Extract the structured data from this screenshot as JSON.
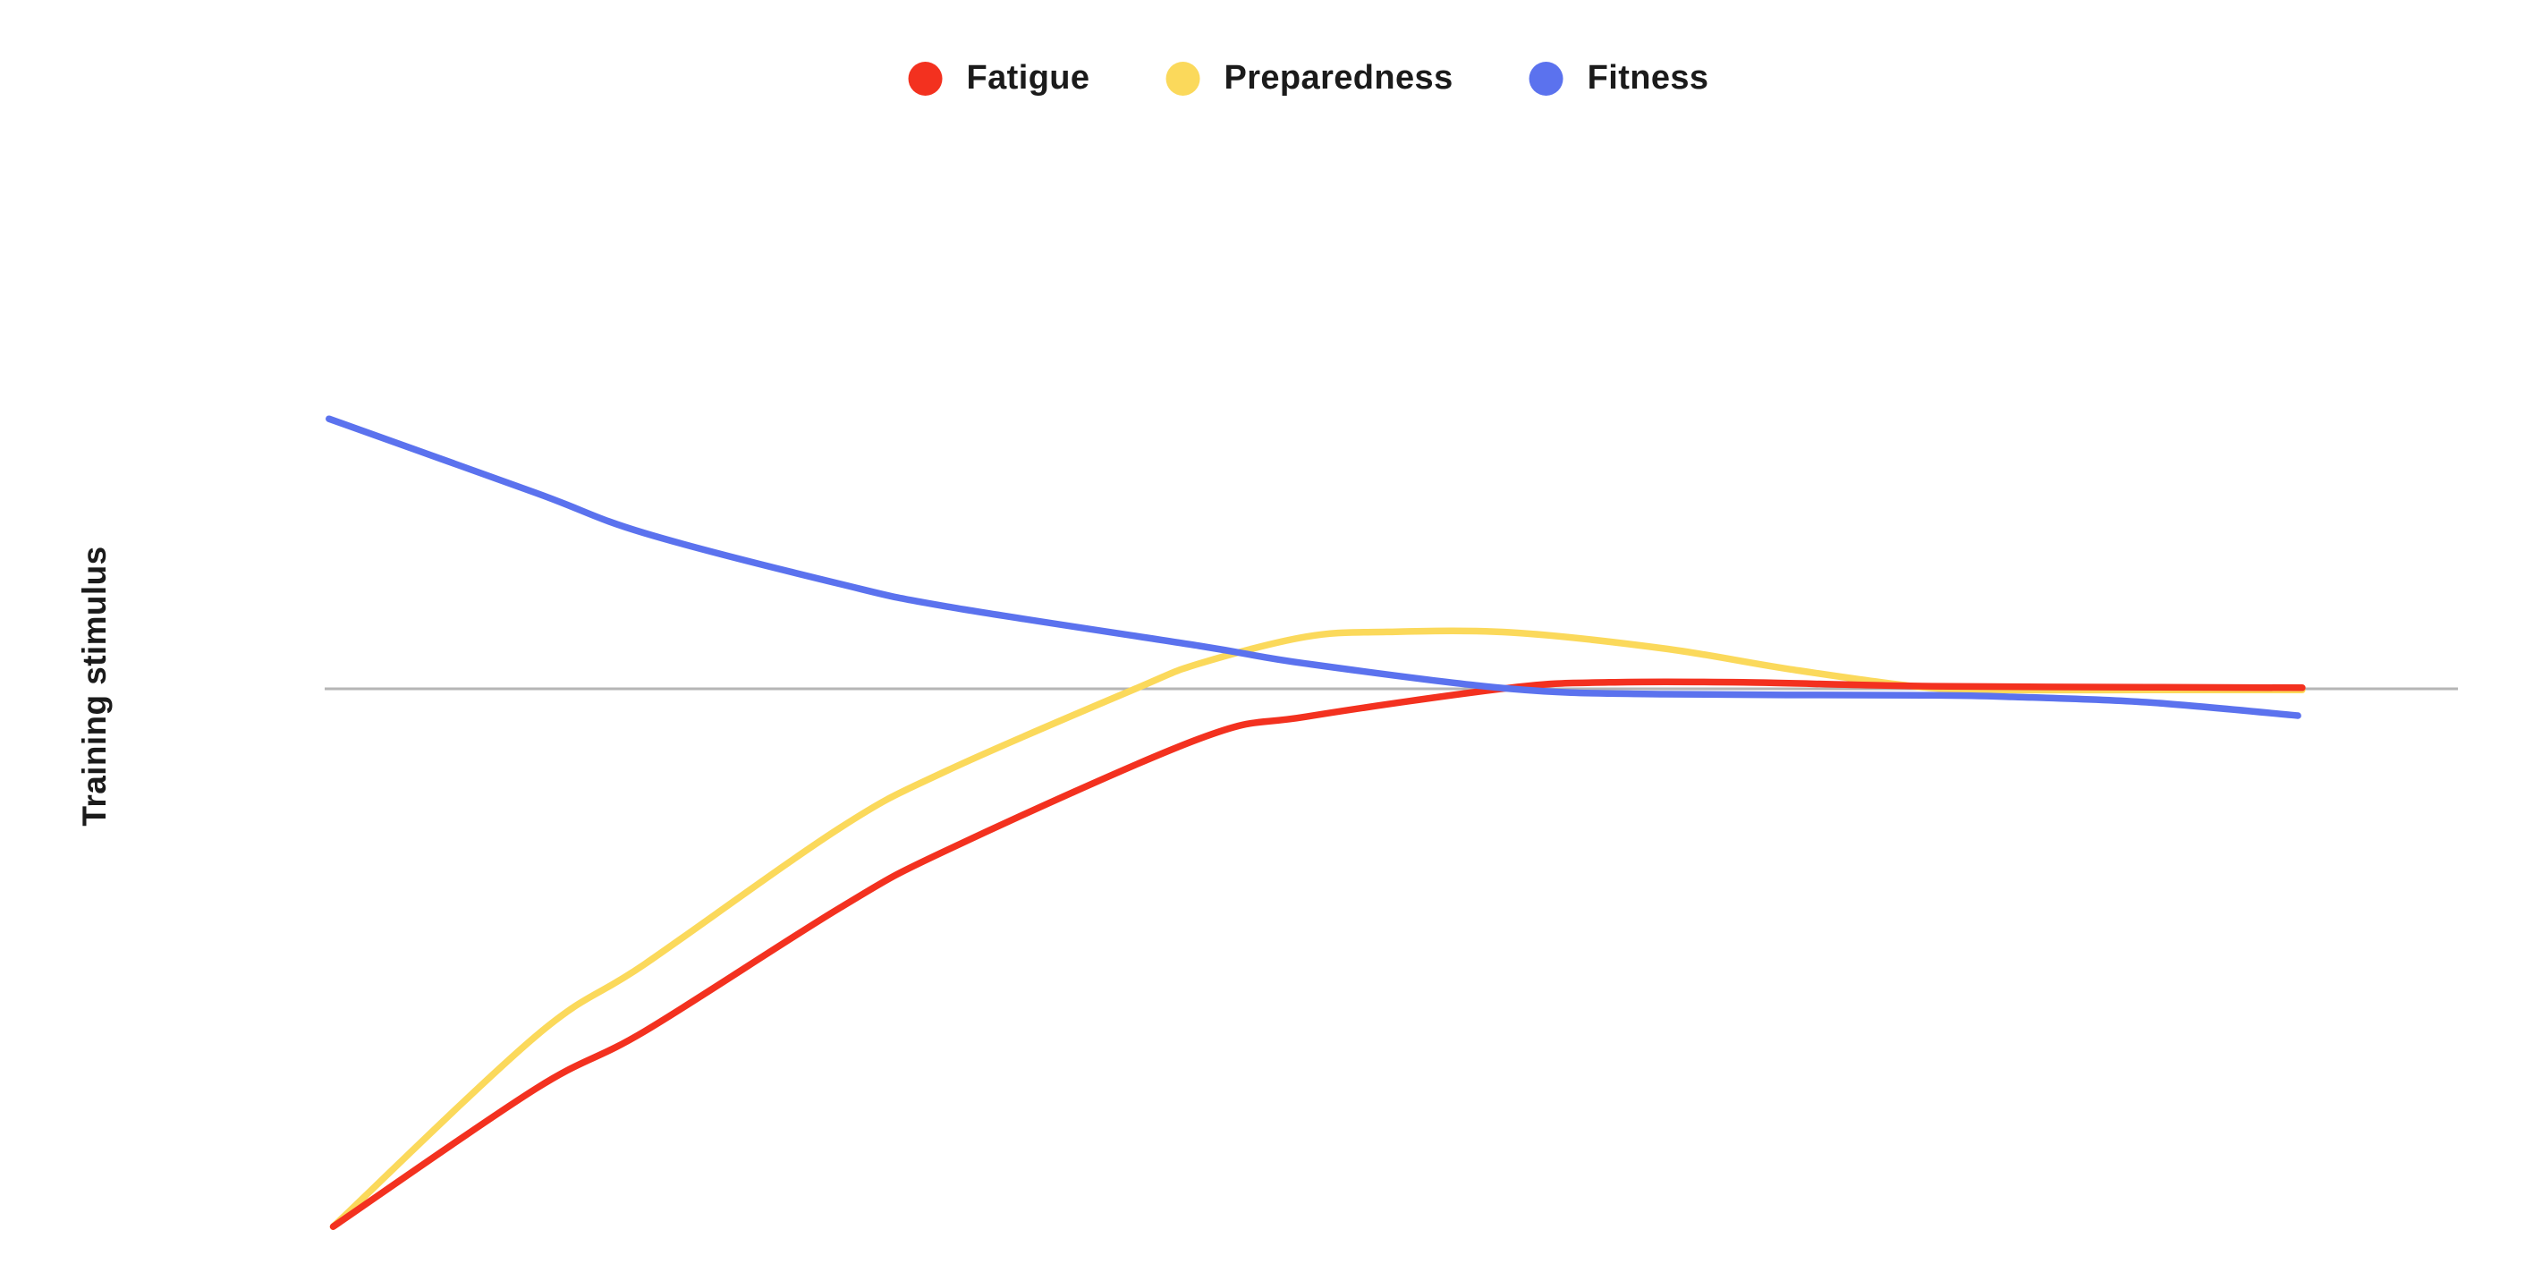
{
  "legend": {
    "items": [
      {
        "label": "Fatigue",
        "color": "#f3311f"
      },
      {
        "label": "Preparedness",
        "color": "#fbd95b"
      },
      {
        "label": "Fitness",
        "color": "#5b72ee"
      }
    ]
  },
  "chart_data": {
    "type": "line",
    "title": "",
    "xlabel": "",
    "ylabel": "Training stimulus",
    "grid": false,
    "legend_position": "top-center",
    "x_axis_visible": false,
    "y_axis_visible": false,
    "y_units": "relative training stimulus (baseline = 0, range approx -1 to +0.55)",
    "x_units": "time (unlabeled, normalized 0-1)",
    "baseline": {
      "value": 0,
      "color": "#b5b5b5"
    },
    "series": [
      {
        "name": "Fatigue",
        "color": "#f3311f",
        "points": [
          [
            0.004,
            -1.002
          ],
          [
            0.099,
            -0.745
          ],
          [
            0.15,
            -0.638
          ],
          [
            0.242,
            -0.407
          ],
          [
            0.292,
            -0.3
          ],
          [
            0.41,
            -0.093
          ],
          [
            0.46,
            -0.052
          ],
          [
            0.556,
            0.002
          ],
          [
            0.602,
            0.012
          ],
          [
            0.665,
            0.012
          ],
          [
            0.749,
            0.005
          ],
          [
            0.854,
            0.003
          ],
          [
            0.927,
            0.002
          ]
        ]
      },
      {
        "name": "Preparedness",
        "color": "#fbd95b",
        "points": [
          [
            0.004,
            -1.002
          ],
          [
            0.099,
            -0.647
          ],
          [
            0.15,
            -0.513
          ],
          [
            0.242,
            -0.258
          ],
          [
            0.292,
            -0.152
          ],
          [
            0.38,
            0.0
          ],
          [
            0.41,
            0.047
          ],
          [
            0.46,
            0.097
          ],
          [
            0.498,
            0.106
          ],
          [
            0.556,
            0.105
          ],
          [
            0.628,
            0.075
          ],
          [
            0.686,
            0.037
          ],
          [
            0.749,
            0.003
          ],
          [
            0.791,
            -0.002
          ],
          [
            0.854,
            -0.002
          ],
          [
            0.927,
            -0.002
          ]
        ]
      },
      {
        "name": "Fitness",
        "color": "#5b72ee",
        "points": [
          [
            0.002,
            0.503
          ],
          [
            0.099,
            0.365
          ],
          [
            0.15,
            0.29
          ],
          [
            0.242,
            0.195
          ],
          [
            0.292,
            0.153
          ],
          [
            0.41,
            0.08
          ],
          [
            0.46,
            0.047
          ],
          [
            0.556,
            0.0
          ],
          [
            0.628,
            -0.01
          ],
          [
            0.749,
            -0.012
          ],
          [
            0.791,
            -0.015
          ],
          [
            0.854,
            -0.025
          ],
          [
            0.925,
            -0.05
          ]
        ]
      }
    ]
  }
}
